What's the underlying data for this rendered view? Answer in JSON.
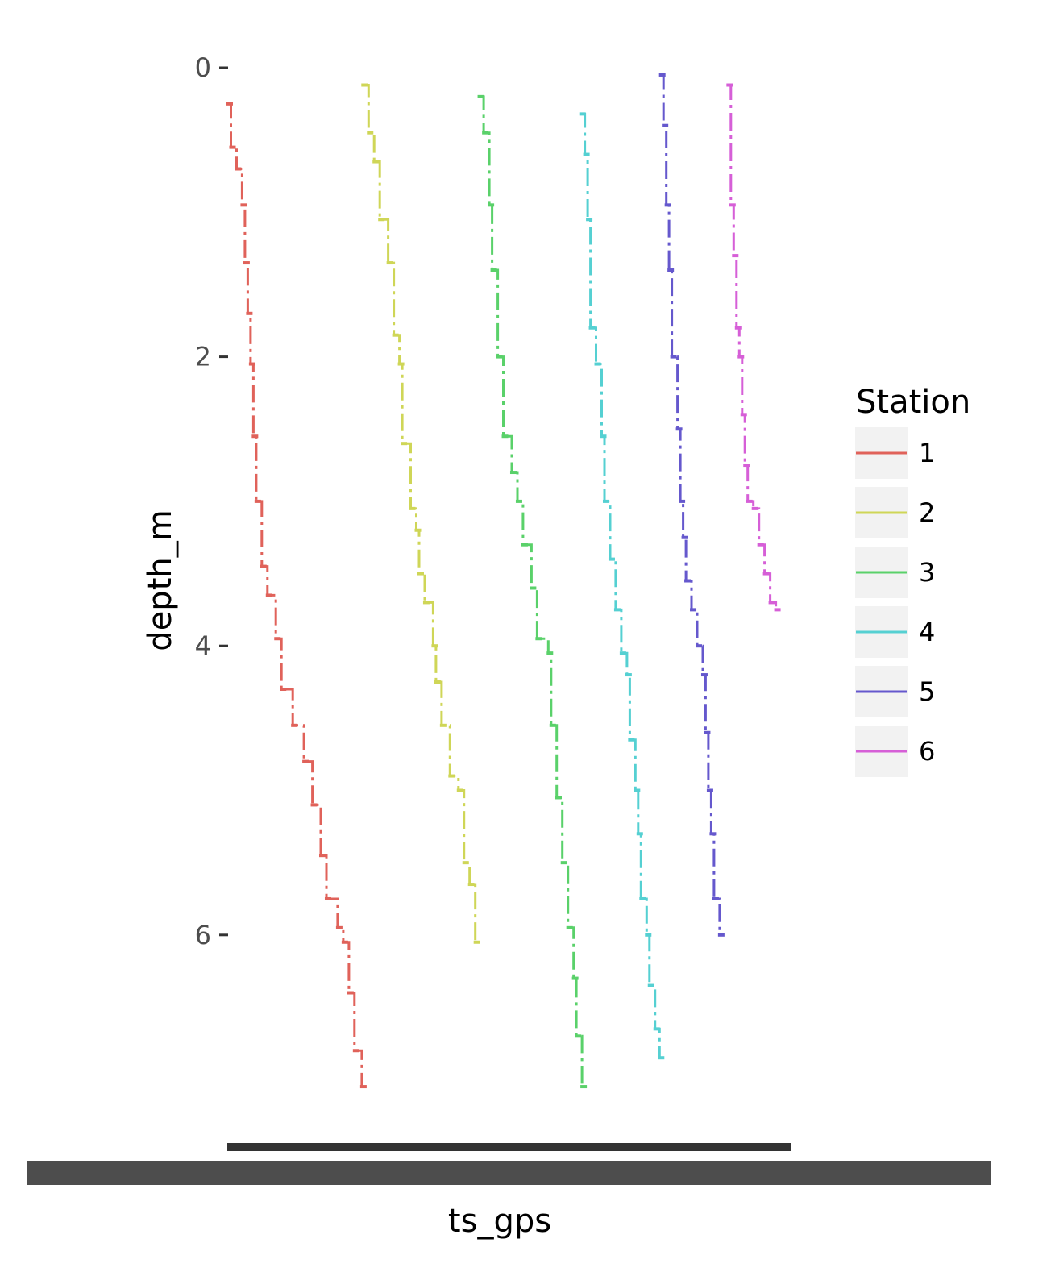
{
  "chart_data": {
    "type": "line",
    "xlabel": "ts_gps",
    "ylabel": "depth_m",
    "y_reversed": true,
    "ylim": [
      0,
      7.5
    ],
    "yticks": [
      0,
      2,
      4,
      6
    ],
    "xlim": [
      0,
      1
    ],
    "grid": false,
    "legend": {
      "title": "Station",
      "placement": "right"
    },
    "series": [
      {
        "name": "1",
        "color": "#e0625a",
        "points": [
          [
            0.0,
            0.25
          ],
          [
            0.005,
            0.55
          ],
          [
            0.015,
            0.7
          ],
          [
            0.025,
            0.95
          ],
          [
            0.03,
            1.35
          ],
          [
            0.035,
            1.7
          ],
          [
            0.04,
            2.05
          ],
          [
            0.045,
            2.55
          ],
          [
            0.05,
            3.0
          ],
          [
            0.06,
            3.45
          ],
          [
            0.07,
            3.65
          ],
          [
            0.085,
            3.95
          ],
          [
            0.095,
            4.3
          ],
          [
            0.115,
            4.55
          ],
          [
            0.135,
            4.8
          ],
          [
            0.15,
            5.1
          ],
          [
            0.165,
            5.45
          ],
          [
            0.175,
            5.75
          ],
          [
            0.195,
            5.95
          ],
          [
            0.205,
            6.05
          ],
          [
            0.215,
            6.4
          ],
          [
            0.225,
            6.8
          ],
          [
            0.238,
            7.05
          ]
        ]
      },
      {
        "name": "2",
        "color": "#cfd657",
        "points": [
          [
            0.24,
            0.12
          ],
          [
            0.25,
            0.45
          ],
          [
            0.26,
            0.65
          ],
          [
            0.27,
            1.05
          ],
          [
            0.285,
            1.35
          ],
          [
            0.295,
            1.85
          ],
          [
            0.305,
            2.05
          ],
          [
            0.31,
            2.6
          ],
          [
            0.325,
            3.05
          ],
          [
            0.335,
            3.2
          ],
          [
            0.34,
            3.5
          ],
          [
            0.35,
            3.7
          ],
          [
            0.365,
            4.0
          ],
          [
            0.37,
            4.25
          ],
          [
            0.38,
            4.55
          ],
          [
            0.395,
            4.9
          ],
          [
            0.41,
            5.0
          ],
          [
            0.42,
            5.5
          ],
          [
            0.43,
            5.65
          ],
          [
            0.44,
            6.05
          ]
        ]
      },
      {
        "name": "3",
        "color": "#5ad16a",
        "points": [
          [
            0.447,
            0.2
          ],
          [
            0.455,
            0.45
          ],
          [
            0.465,
            0.95
          ],
          [
            0.47,
            1.4
          ],
          [
            0.48,
            2.0
          ],
          [
            0.49,
            2.55
          ],
          [
            0.505,
            2.8
          ],
          [
            0.515,
            3.0
          ],
          [
            0.525,
            3.3
          ],
          [
            0.54,
            3.6
          ],
          [
            0.55,
            3.95
          ],
          [
            0.57,
            4.05
          ],
          [
            0.575,
            4.55
          ],
          [
            0.585,
            5.05
          ],
          [
            0.595,
            5.5
          ],
          [
            0.605,
            5.95
          ],
          [
            0.615,
            6.3
          ],
          [
            0.62,
            6.7
          ],
          [
            0.63,
            7.05
          ]
        ]
      },
      {
        "name": "4",
        "color": "#55d0d2",
        "points": [
          [
            0.628,
            0.32
          ],
          [
            0.635,
            0.6
          ],
          [
            0.64,
            1.05
          ],
          [
            0.645,
            1.8
          ],
          [
            0.655,
            2.05
          ],
          [
            0.665,
            2.55
          ],
          [
            0.67,
            3.0
          ],
          [
            0.68,
            3.4
          ],
          [
            0.69,
            3.75
          ],
          [
            0.7,
            4.05
          ],
          [
            0.71,
            4.2
          ],
          [
            0.715,
            4.65
          ],
          [
            0.725,
            5.0
          ],
          [
            0.73,
            5.3
          ],
          [
            0.735,
            5.75
          ],
          [
            0.745,
            6.0
          ],
          [
            0.75,
            6.35
          ],
          [
            0.76,
            6.65
          ],
          [
            0.768,
            6.85
          ]
        ]
      },
      {
        "name": "5",
        "color": "#6558cd",
        "points": [
          [
            0.77,
            0.05
          ],
          [
            0.775,
            0.4
          ],
          [
            0.78,
            0.95
          ],
          [
            0.785,
            1.4
          ],
          [
            0.79,
            2.0
          ],
          [
            0.8,
            2.5
          ],
          [
            0.805,
            3.0
          ],
          [
            0.81,
            3.25
          ],
          [
            0.815,
            3.55
          ],
          [
            0.825,
            3.75
          ],
          [
            0.835,
            4.0
          ],
          [
            0.845,
            4.2
          ],
          [
            0.85,
            4.6
          ],
          [
            0.855,
            5.0
          ],
          [
            0.86,
            5.3
          ],
          [
            0.865,
            5.75
          ],
          [
            0.875,
            6.0
          ]
        ]
      },
      {
        "name": "6",
        "color": "#d65fd7",
        "points": [
          [
            0.89,
            0.12
          ],
          [
            0.895,
            0.95
          ],
          [
            0.9,
            1.3
          ],
          [
            0.905,
            1.8
          ],
          [
            0.91,
            2.0
          ],
          [
            0.915,
            2.4
          ],
          [
            0.92,
            2.75
          ],
          [
            0.925,
            3.0
          ],
          [
            0.935,
            3.05
          ],
          [
            0.945,
            3.3
          ],
          [
            0.955,
            3.5
          ],
          [
            0.965,
            3.7
          ],
          [
            0.975,
            3.75
          ]
        ]
      }
    ]
  }
}
